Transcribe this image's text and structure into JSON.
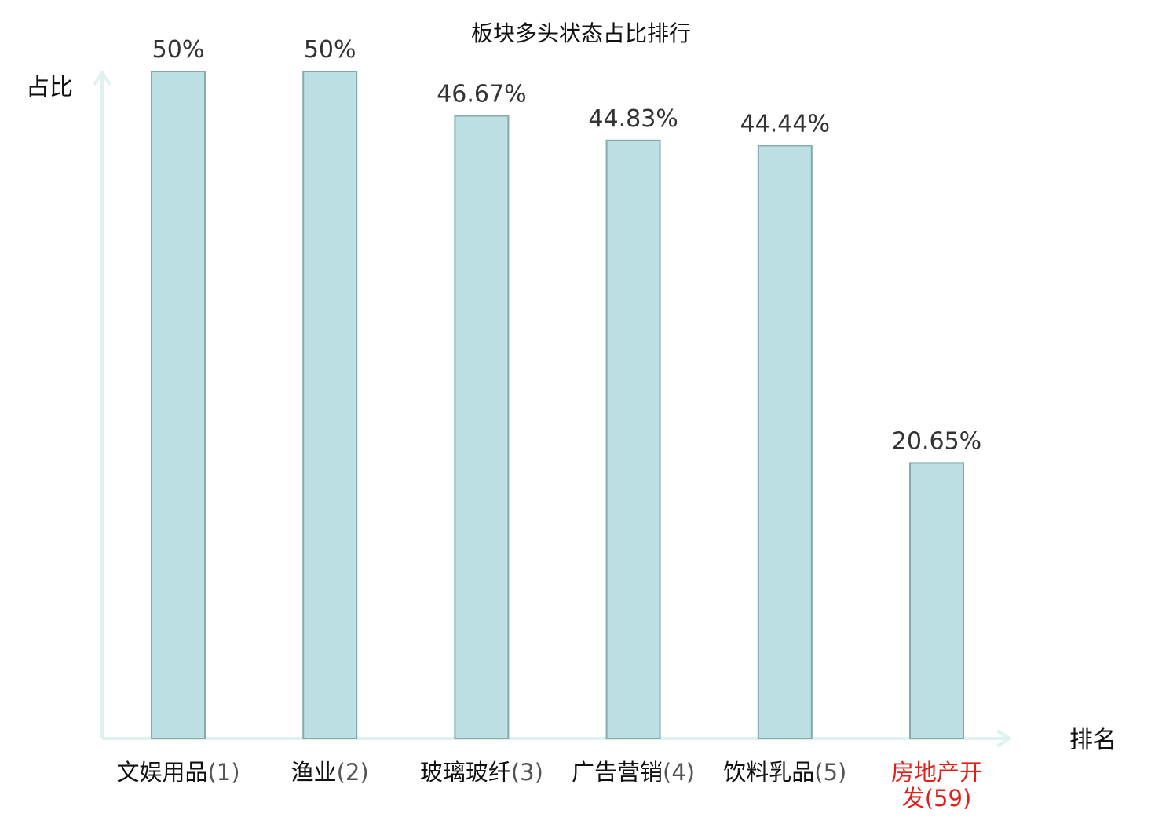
{
  "chart_data": {
    "type": "bar",
    "title": "板块多头状态占比排行",
    "ylabel": "占比",
    "xlabel": "排名",
    "ylim": [
      0,
      50
    ],
    "grid": false,
    "categories": [
      "文娱用品",
      "渔业",
      "玻璃玻纤",
      "广告营销",
      "饮料乳品",
      "房地产开发"
    ],
    "ranks": [
      "(1)",
      "(2)",
      "(3)",
      "(4)",
      "(5)",
      "(59)"
    ],
    "values": [
      50,
      50,
      46.67,
      44.83,
      44.44,
      20.65
    ],
    "value_labels": [
      "50%",
      "50%",
      "46.67%",
      "44.83%",
      "44.44%",
      "20.65%"
    ],
    "highlight_index": 5
  },
  "colors": {
    "bar_fill": "#bce0e3",
    "bar_stroke": "#86a9ab",
    "axis": "#e0f2ef",
    "text": "#111111",
    "value_text": "#333333",
    "rank_text": "#555555",
    "highlight": "#e0201b"
  }
}
